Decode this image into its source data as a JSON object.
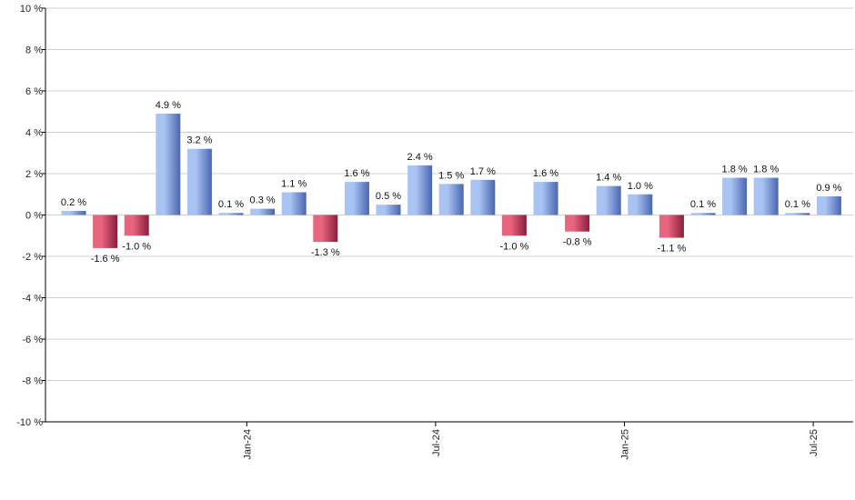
{
  "chart_data": {
    "type": "bar",
    "title": "",
    "xlabel": "",
    "ylabel": "",
    "ylim": [
      -10,
      10
    ],
    "y_ticks": [
      10,
      8,
      6,
      4,
      2,
      0,
      -2,
      -4,
      -6,
      -8,
      -10
    ],
    "y_tick_suffix": " %",
    "values": [
      0.2,
      -1.6,
      -1.0,
      4.9,
      3.2,
      0.1,
      0.3,
      1.1,
      -1.3,
      1.6,
      0.5,
      2.4,
      1.5,
      1.7,
      -1.0,
      1.6,
      -0.8,
      1.4,
      1.0,
      -1.1,
      0.1,
      1.8,
      1.8,
      0.1,
      0.9
    ],
    "value_labels": [
      "0.2 %",
      "-1.6 %",
      "-1.0 %",
      "4.9 %",
      "3.2 %",
      "0.1 %",
      "0.3 %",
      "1.1 %",
      "-1.3 %",
      "1.6 %",
      "0.5 %",
      "2.4 %",
      "1.5 %",
      "1.7 %",
      "-1.0 %",
      "1.6 %",
      "-0.8 %",
      "1.4 %",
      "1.0 %",
      "-1.1 %",
      "0.1 %",
      "1.8 %",
      "1.8 %",
      "0.1 %",
      "0.9 %"
    ],
    "x_tick_labels": [
      {
        "label": "Jan-24",
        "bar_index": 5.5
      },
      {
        "label": "Jul-24",
        "bar_index": 11.5
      },
      {
        "label": "Jan-25",
        "bar_index": 17.5
      },
      {
        "label": "Jul-25",
        "bar_index": 23.5
      }
    ],
    "grid": true,
    "colors": {
      "positive_light": "#a9c3f2",
      "positive_dark": "#4a66b0",
      "negative_light": "#e8647f",
      "negative_dark": "#8a1e3c",
      "grid": "#cfcfcf",
      "axis": "#000000"
    }
  }
}
